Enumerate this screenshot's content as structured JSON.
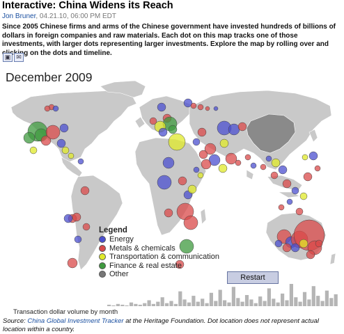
{
  "article": {
    "title": "Interactive: China Widens its Reach",
    "author": "Jon Bruner",
    "timestamp": ", 04.21.10, 06:00 PM EDT",
    "description": "Since 2005 Chinese firms and arms of the Chinese government have invested hundreds of billions of dollars in foreign companies and raw materials. Each dot on this map tracks one of those investments, with larger dots representing larger investments. Explore the map by rolling over and clicking on the dots and timeline."
  },
  "share_icons": [
    "share-icon",
    "email-icon"
  ],
  "map": {
    "month_label": "December 2009",
    "legend": {
      "title": "Legend",
      "items": [
        {
          "label": "Energy",
          "color": "#4b4fcf"
        },
        {
          "label": "Metals & chemicals",
          "color": "#d94a4a"
        },
        {
          "label": "Transportation & communication",
          "color": "#e0ea2a"
        },
        {
          "label": "Finance & real estate",
          "color": "#3f9a3f"
        },
        {
          "label": "Other",
          "color": "#777777"
        }
      ]
    },
    "restart_label": "Restart",
    "timeline_label": "Transaction dollar volume by month",
    "timeline_volume": [
      2,
      1,
      3,
      2,
      1,
      5,
      3,
      2,
      4,
      8,
      3,
      6,
      12,
      4,
      7,
      3,
      20,
      9,
      5,
      14,
      6,
      10,
      4,
      18,
      7,
      22,
      8,
      5,
      26,
      11,
      6,
      15,
      9,
      4,
      13,
      7,
      24,
      10,
      5,
      17,
      8,
      30,
      12,
      6,
      19,
      9,
      27,
      14,
      7,
      21,
      11,
      16
    ]
  },
  "source": {
    "prefix": "Source: ",
    "link": "China Global Investment Tracker",
    "suffix": " at the Heritage Foundation. Dot location does not represent actual location within a country."
  }
}
